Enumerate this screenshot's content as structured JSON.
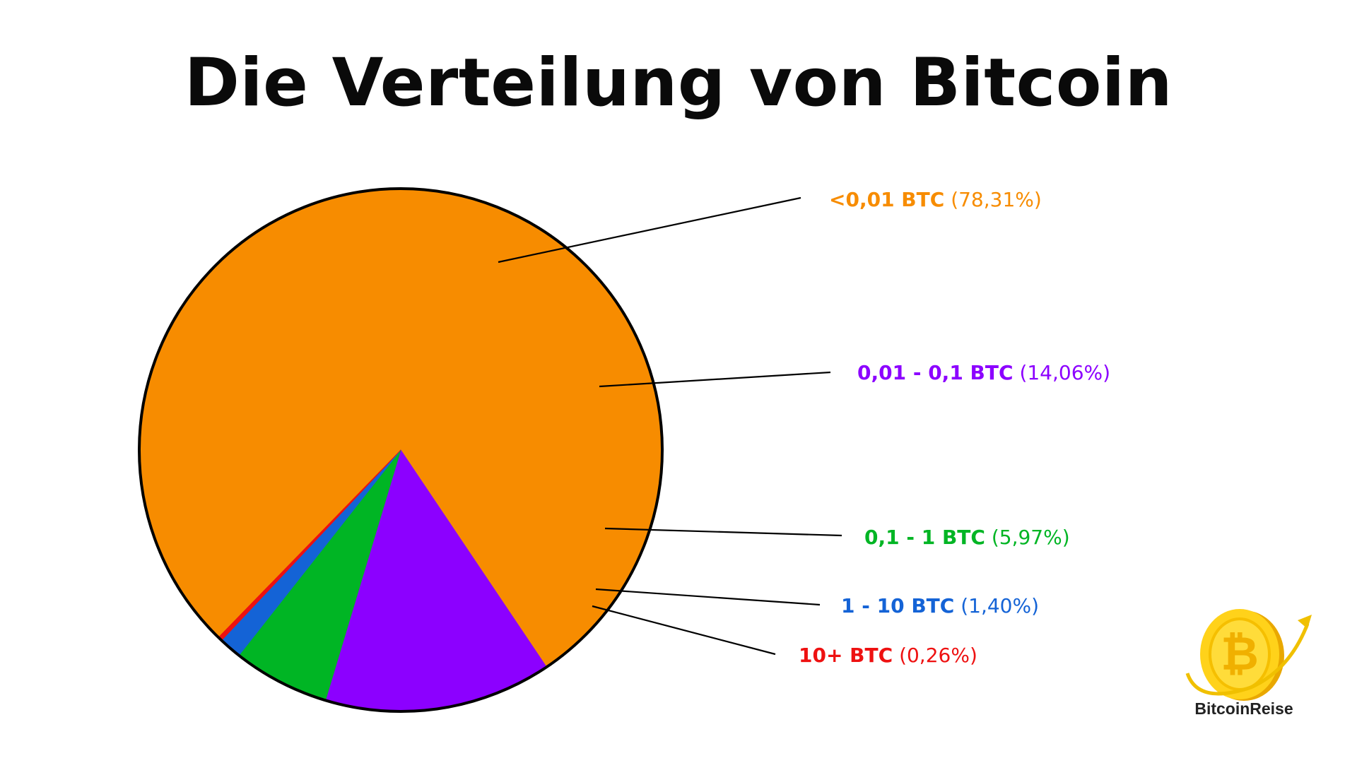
{
  "title": "Die Verteilung von Bitcoin",
  "brand": {
    "name": "BitcoinReise",
    "logo_icon": "bitcoin-coin-airplane-icon",
    "logo_letter": "₿"
  },
  "chart_data": {
    "type": "pie",
    "title": "Die Verteilung von Bitcoin",
    "slices": [
      {
        "label": "<0,01 BTC",
        "percent_text": "(78,31%)",
        "value": 78.31,
        "color": "#f78c00"
      },
      {
        "label": "0,01 - 0,1 BTC",
        "percent_text": "(14,06%)",
        "value": 14.06,
        "color": "#8c00ff"
      },
      {
        "label": "0,1 - 1 BTC",
        "percent_text": "(5,97%)",
        "value": 5.97,
        "color": "#00b524"
      },
      {
        "label": "1 - 10 BTC",
        "percent_text": "(1,40%)",
        "value": 1.4,
        "color": "#1463d6"
      },
      {
        "label": "10+ BTC",
        "percent_text": "(0,26%)",
        "value": 0.26,
        "color": "#ee1111"
      }
    ],
    "legend": "callout labels on the right",
    "outline_color": "#000000"
  }
}
